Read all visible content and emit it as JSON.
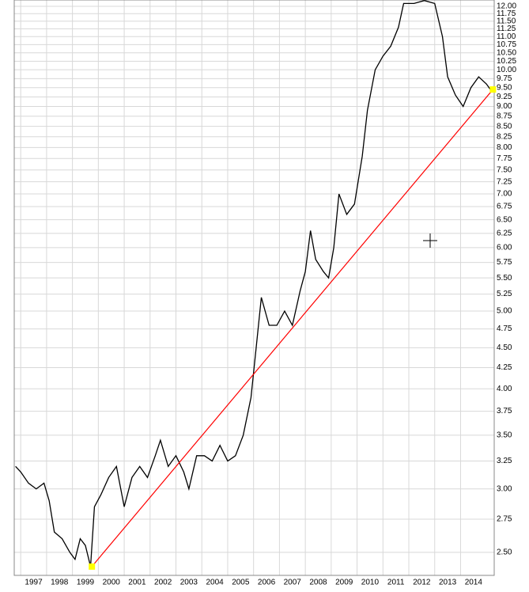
{
  "chart_data": {
    "type": "line",
    "log_scale": true,
    "grid": true,
    "xlim": [
      1996.75,
      2015.3
    ],
    "xticks": [
      1997,
      1998,
      1999,
      2000,
      2001,
      2002,
      2003,
      2004,
      2005,
      2006,
      2007,
      2008,
      2009,
      2010,
      2011,
      2012,
      2013,
      2014
    ],
    "ylim": [
      2.34,
      12.22
    ],
    "yticks": [
      {
        "value": 2.5,
        "label": "2.50"
      },
      {
        "value": 2.75,
        "label": "2.75"
      },
      {
        "value": 3,
        "label": "3.00"
      },
      {
        "value": 3.25,
        "label": "3.25"
      },
      {
        "value": 3.5,
        "label": "3.50"
      },
      {
        "value": 3.75,
        "label": "3.75"
      },
      {
        "value": 4,
        "label": "4.00"
      },
      {
        "value": 4.25,
        "label": "4.25"
      },
      {
        "value": 4.5,
        "label": "4.50"
      },
      {
        "value": 4.75,
        "label": "4.75"
      },
      {
        "value": 5,
        "label": "5.00"
      },
      {
        "value": 5.25,
        "label": "5.25"
      },
      {
        "value": 5.5,
        "label": "5.50"
      },
      {
        "value": 5.75,
        "label": "5.75"
      },
      {
        "value": 6,
        "label": "6.00"
      },
      {
        "value": 6.25,
        "label": "6.25"
      },
      {
        "value": 6.5,
        "label": "6.50"
      },
      {
        "value": 6.75,
        "label": "6.75"
      },
      {
        "value": 7,
        "label": "7.00"
      },
      {
        "value": 7.25,
        "label": "7.25"
      },
      {
        "value": 7.5,
        "label": "7.50"
      },
      {
        "value": 7.75,
        "label": "7.75"
      },
      {
        "value": 8,
        "label": "8.00"
      },
      {
        "value": 8.25,
        "label": "8.25"
      },
      {
        "value": 8.5,
        "label": "8.50"
      },
      {
        "value": 8.75,
        "label": "8.75"
      },
      {
        "value": 9,
        "label": "9.00"
      },
      {
        "value": 9.25,
        "label": "9.25"
      },
      {
        "value": 9.5,
        "label": "9.50"
      },
      {
        "value": 9.75,
        "label": "9.75"
      },
      {
        "value": 10,
        "label": "10.00"
      },
      {
        "value": 10.25,
        "label": "10.25"
      },
      {
        "value": 10.5,
        "label": "10.50"
      },
      {
        "value": 10.75,
        "label": "10.75"
      },
      {
        "value": 11,
        "label": "11.00"
      },
      {
        "value": 11.25,
        "label": "11.25"
      },
      {
        "value": 11.5,
        "label": "11.50"
      },
      {
        "value": 11.75,
        "label": "11.75"
      },
      {
        "value": 12,
        "label": "12.00"
      }
    ],
    "series": [
      {
        "color": "#000000",
        "x": [
          1996.8,
          1997.0,
          1997.3,
          1997.6,
          1997.9,
          1998.1,
          1998.3,
          1998.6,
          1998.9,
          1999.1,
          1999.3,
          1999.5,
          1999.7,
          1999.85,
          2000.1,
          2000.4,
          2000.7,
          2001.0,
          2001.3,
          2001.6,
          2001.9,
          2002.2,
          2002.4,
          2002.7,
          2003.0,
          2003.3,
          2003.5,
          2003.8,
          2004.1,
          2004.4,
          2004.7,
          2005.0,
          2005.3,
          2005.6,
          2005.9,
          2006.1,
          2006.3,
          2006.6,
          2006.9,
          2007.2,
          2007.5,
          2007.8,
          2008.0,
          2008.2,
          2008.4,
          2008.7,
          2008.9,
          2009.1,
          2009.3,
          2009.6,
          2009.9,
          2010.2,
          2010.4,
          2010.7,
          2011.0,
          2011.3,
          2011.6,
          2011.8,
          2012.2,
          2012.6,
          2013.0,
          2013.3,
          2013.5,
          2013.8,
          2014.1,
          2014.4,
          2014.7,
          2015.0,
          2015.15
        ],
        "values": [
          3.2,
          3.15,
          3.05,
          3.0,
          3.05,
          2.9,
          2.65,
          2.6,
          2.5,
          2.45,
          2.6,
          2.55,
          2.4,
          2.85,
          2.95,
          3.1,
          3.2,
          2.85,
          3.1,
          3.2,
          3.1,
          3.3,
          3.45,
          3.2,
          3.3,
          3.15,
          3.0,
          3.3,
          3.3,
          3.25,
          3.4,
          3.25,
          3.3,
          3.5,
          3.9,
          4.5,
          5.2,
          4.8,
          4.8,
          5.0,
          4.8,
          5.3,
          5.6,
          6.3,
          5.8,
          5.6,
          5.5,
          6.0,
          7.0,
          6.6,
          6.8,
          7.8,
          8.9,
          10.0,
          10.4,
          10.7,
          11.3,
          12.1,
          12.1,
          12.2,
          12.1,
          11.0,
          9.8,
          9.3,
          9.0,
          9.5,
          9.8,
          9.6,
          9.45
        ]
      },
      {
        "color": "#ff0000",
        "x": [
          1999.75,
          2015.25
        ],
        "values": [
          2.4,
          9.45
        ]
      }
    ]
  }
}
